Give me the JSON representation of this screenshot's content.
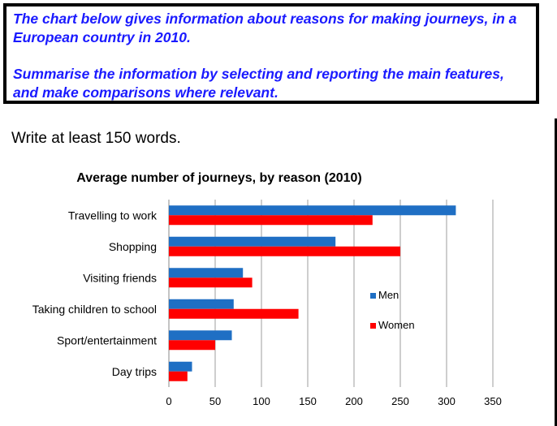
{
  "task": {
    "line1": "The chart below gives information about reasons for making journeys, in a European country in 2010.",
    "line2": "Summarise the information by selecting and reporting the main features, and make comparisons where relevant."
  },
  "instruction": "Write at least 150 words.",
  "chart_data": {
    "type": "bar",
    "orientation": "horizontal",
    "title": "Average number of journeys, by reason (2010)",
    "categories": [
      "Travelling to work",
      "Shopping",
      "Visiting friends",
      "Taking children to school",
      "Sport/entertainment",
      "Day trips"
    ],
    "series": [
      {
        "name": "Men",
        "color": "#1f6fc4",
        "values": [
          310,
          180,
          80,
          70,
          68,
          25
        ]
      },
      {
        "name": "Women",
        "color": "#ff0000",
        "values": [
          220,
          250,
          90,
          140,
          50,
          20
        ]
      }
    ],
    "xlim": [
      0,
      350
    ],
    "xticks": [
      "0",
      "50",
      "100",
      "150",
      "200",
      "250",
      "300",
      "350"
    ],
    "grid": true,
    "legend_position": "right"
  }
}
